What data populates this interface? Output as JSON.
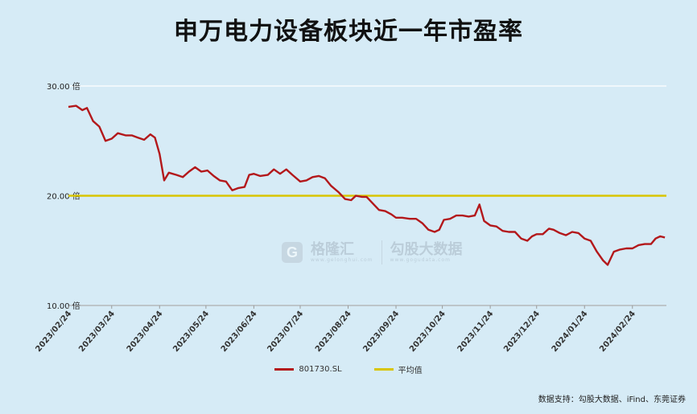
{
  "title": "申万电力设备板块近一年市盈率",
  "source": "数据支持：勾股大数据、iFind、东莞证券",
  "watermark": {
    "brand1": "格隆汇",
    "brand1_sub": "www.gelonghui.com",
    "brand2": "勾股大数据",
    "brand2_sub": "www.gogudata.com"
  },
  "colors": {
    "background": "#d6ebf6",
    "pe_line": "#b3181b",
    "avg_line": "#d9c500",
    "grid": "#ffffff"
  },
  "chart_data": {
    "type": "line",
    "title": "申万电力设备板块近一年市盈率",
    "ylim": [
      10,
      30
    ],
    "ytick_values": [
      10,
      20,
      30
    ],
    "ytick_labels": [
      "10.00 倍",
      "20.00 倍",
      "30.00 倍"
    ],
    "grid": true,
    "legend_position": "bottom",
    "x_labels": [
      "2023/02/24",
      "2023/03/24",
      "2023/04/24",
      "2023/05/24",
      "2023/06/24",
      "2023/07/24",
      "2023/08/24",
      "2023/09/24",
      "2023/10/24",
      "2023/11/24",
      "2023/12/24",
      "2024/01/24",
      "2024/02/24"
    ],
    "series": [
      {
        "name": "801730.SL",
        "color": "#b3181b",
        "points": [
          [
            "2023/02/24",
            28.1
          ],
          [
            "2023/03/01",
            28.2
          ],
          [
            "2023/03/05",
            27.8
          ],
          [
            "2023/03/08",
            28.0
          ],
          [
            "2023/03/12",
            26.8
          ],
          [
            "2023/03/16",
            26.3
          ],
          [
            "2023/03/20",
            25.0
          ],
          [
            "2023/03/24",
            25.2
          ],
          [
            "2023/03/28",
            25.7
          ],
          [
            "2023/04/02",
            25.5
          ],
          [
            "2023/04/06",
            25.5
          ],
          [
            "2023/04/10",
            25.3
          ],
          [
            "2023/04/14",
            25.1
          ],
          [
            "2023/04/18",
            25.6
          ],
          [
            "2023/04/21",
            25.3
          ],
          [
            "2023/04/24",
            23.8
          ],
          [
            "2023/04/27",
            21.4
          ],
          [
            "2023/04/30",
            22.1
          ],
          [
            "2023/05/05",
            21.9
          ],
          [
            "2023/05/09",
            21.7
          ],
          [
            "2023/05/13",
            22.2
          ],
          [
            "2023/05/17",
            22.6
          ],
          [
            "2023/05/21",
            22.2
          ],
          [
            "2023/05/25",
            22.3
          ],
          [
            "2023/05/29",
            21.8
          ],
          [
            "2023/06/02",
            21.4
          ],
          [
            "2023/06/06",
            21.3
          ],
          [
            "2023/06/10",
            20.5
          ],
          [
            "2023/06/14",
            20.7
          ],
          [
            "2023/06/18",
            20.8
          ],
          [
            "2023/06/21",
            21.9
          ],
          [
            "2023/06/24",
            22.0
          ],
          [
            "2023/06/28",
            21.8
          ],
          [
            "2023/07/03",
            21.9
          ],
          [
            "2023/07/07",
            22.4
          ],
          [
            "2023/07/11",
            22.0
          ],
          [
            "2023/07/15",
            22.4
          ],
          [
            "2023/07/19",
            21.9
          ],
          [
            "2023/07/24",
            21.3
          ],
          [
            "2023/07/28",
            21.4
          ],
          [
            "2023/08/01",
            21.7
          ],
          [
            "2023/08/05",
            21.8
          ],
          [
            "2023/08/09",
            21.6
          ],
          [
            "2023/08/13",
            20.9
          ],
          [
            "2023/08/18",
            20.3
          ],
          [
            "2023/08/22",
            19.7
          ],
          [
            "2023/08/26",
            19.6
          ],
          [
            "2023/08/29",
            20.0
          ],
          [
            "2023/09/02",
            19.9
          ],
          [
            "2023/09/05",
            19.9
          ],
          [
            "2023/09/09",
            19.3
          ],
          [
            "2023/09/13",
            18.7
          ],
          [
            "2023/09/17",
            18.6
          ],
          [
            "2023/09/21",
            18.3
          ],
          [
            "2023/09/24",
            18.0
          ],
          [
            "2023/09/28",
            18.0
          ],
          [
            "2023/10/03",
            17.9
          ],
          [
            "2023/10/07",
            17.9
          ],
          [
            "2023/10/11",
            17.5
          ],
          [
            "2023/10/15",
            16.9
          ],
          [
            "2023/10/19",
            16.7
          ],
          [
            "2023/10/22",
            16.9
          ],
          [
            "2023/10/25",
            17.8
          ],
          [
            "2023/10/29",
            17.9
          ],
          [
            "2023/11/02",
            18.2
          ],
          [
            "2023/11/06",
            18.2
          ],
          [
            "2023/11/10",
            18.1
          ],
          [
            "2023/11/14",
            18.2
          ],
          [
            "2023/11/17",
            19.2
          ],
          [
            "2023/11/20",
            17.7
          ],
          [
            "2023/11/24",
            17.3
          ],
          [
            "2023/11/28",
            17.2
          ],
          [
            "2023/12/02",
            16.8
          ],
          [
            "2023/12/06",
            16.7
          ],
          [
            "2023/12/10",
            16.7
          ],
          [
            "2023/12/14",
            16.1
          ],
          [
            "2023/12/18",
            15.9
          ],
          [
            "2023/12/21",
            16.3
          ],
          [
            "2023/12/24",
            16.5
          ],
          [
            "2023/12/28",
            16.5
          ],
          [
            "2024/01/01",
            17.0
          ],
          [
            "2024/01/04",
            16.9
          ],
          [
            "2024/01/08",
            16.6
          ],
          [
            "2024/01/12",
            16.4
          ],
          [
            "2024/01/16",
            16.7
          ],
          [
            "2024/01/20",
            16.6
          ],
          [
            "2024/01/24",
            16.1
          ],
          [
            "2024/01/28",
            15.9
          ],
          [
            "2024/02/01",
            14.9
          ],
          [
            "2024/02/05",
            14.1
          ],
          [
            "2024/02/08",
            13.7
          ],
          [
            "2024/02/12",
            14.9
          ],
          [
            "2024/02/16",
            15.1
          ],
          [
            "2024/02/20",
            15.2
          ],
          [
            "2024/02/24",
            15.2
          ],
          [
            "2024/02/28",
            15.5
          ],
          [
            "2024/03/03",
            15.6
          ],
          [
            "2024/03/07",
            15.6
          ],
          [
            "2024/03/10",
            16.1
          ],
          [
            "2024/03/13",
            16.3
          ],
          [
            "2024/03/16",
            16.2
          ]
        ]
      },
      {
        "name": "平均值",
        "color": "#d9c500",
        "value": 20.0
      }
    ]
  }
}
